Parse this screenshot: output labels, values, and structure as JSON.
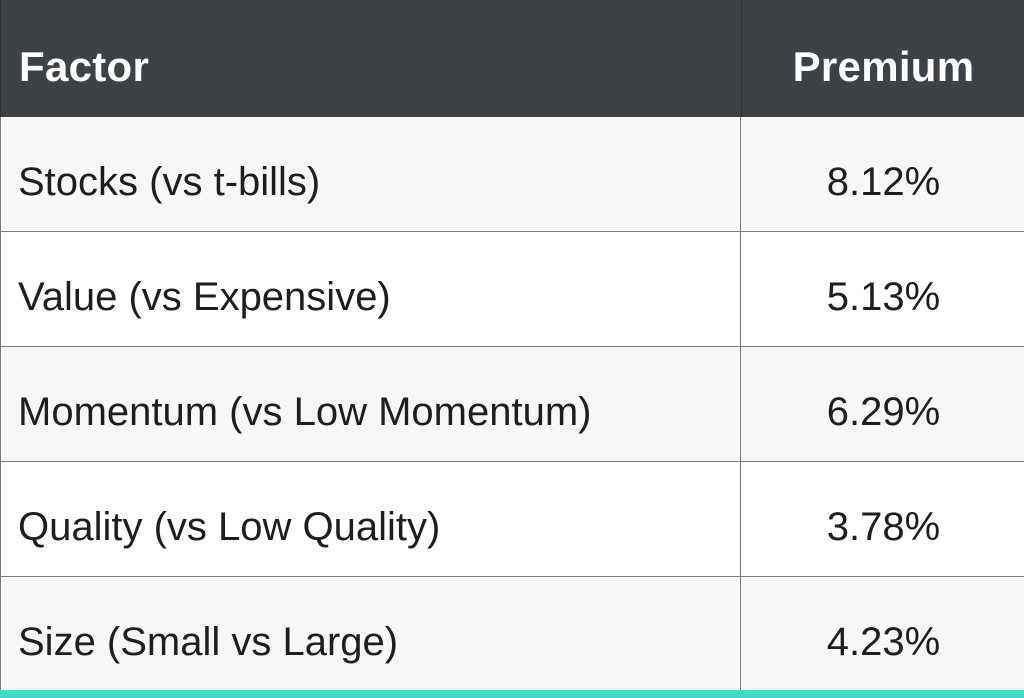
{
  "table": {
    "headers": {
      "factor": "Factor",
      "premium": "Premium"
    },
    "rows": [
      {
        "factor": "Stocks (vs t-bills)",
        "premium": "8.12%"
      },
      {
        "factor": "Value (vs Expensive)",
        "premium": "5.13%"
      },
      {
        "factor": "Momentum (vs Low Momentum)",
        "premium": "6.29%"
      },
      {
        "factor": "Quality (vs Low Quality)",
        "premium": "3.78%"
      },
      {
        "factor": "Size (Small vs Large)",
        "premium": "4.23%"
      }
    ]
  },
  "colors": {
    "header_background": "#3d4246",
    "header_text": "#ffffff",
    "row_shade": "#f7f7f7",
    "row_plain": "#ffffff",
    "grid_line": "#7a7a7a",
    "accent_bar": "#3fd9c6"
  }
}
